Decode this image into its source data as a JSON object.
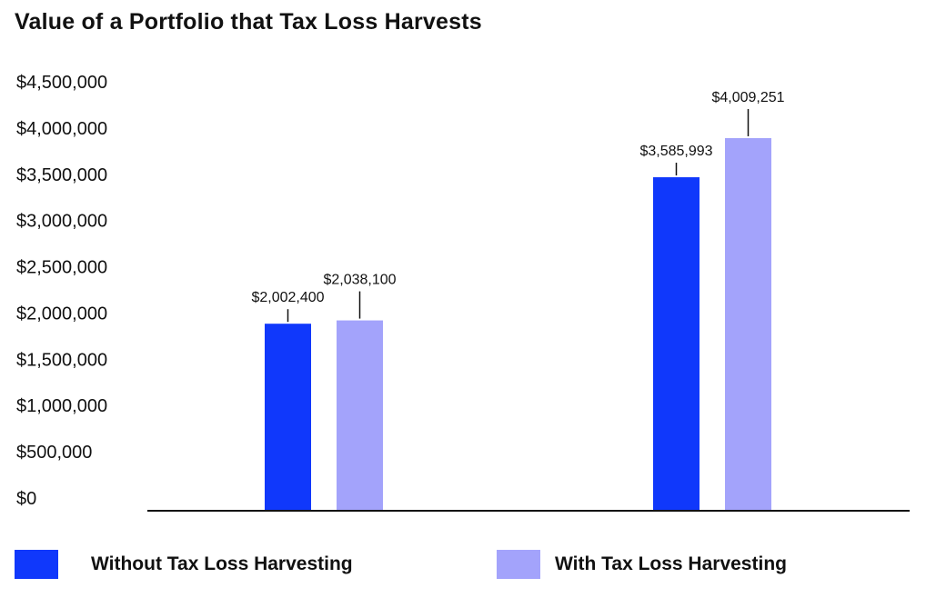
{
  "chart_data": {
    "type": "bar",
    "title": "Value of a Portfolio that Tax Loss Harvests",
    "xlabel": "",
    "ylabel": "",
    "categories": [
      "",
      ""
    ],
    "ylim": [
      0,
      4500000
    ],
    "yticks": [
      "$0",
      "$500,000",
      "$1,000,000",
      "$1,500,000",
      "$2,000,000",
      "$2,500,000",
      "$3,000,000",
      "$3,500,000",
      "$4,000,000",
      "$4,500,000"
    ],
    "grid": false,
    "legend_position": "bottom",
    "series": [
      {
        "name": "Without Tax Loss Harvesting",
        "color": "#1038FB",
        "values": [
          2002400,
          3585993
        ],
        "labels": [
          "$2,002,400",
          "$3,585,993"
        ]
      },
      {
        "name": "With Tax Loss Harvesting",
        "color": "#A3A3FB",
        "values": [
          2038100,
          4009251
        ],
        "labels": [
          "$2,038,100",
          "$4,009,251"
        ]
      }
    ]
  }
}
